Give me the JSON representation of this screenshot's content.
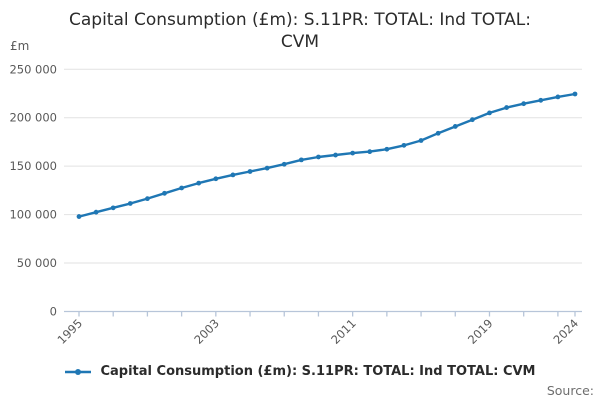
{
  "title": "Capital Consumption (£m): S.11PR: TOTAL: Ind TOTAL: CVM",
  "unit_label": "£m",
  "source_label": "Source:",
  "legend": {
    "label": "Capital Consumption (£m): S.11PR: TOTAL: Ind TOTAL: CVM"
  },
  "colors": {
    "series": "#1f77b4",
    "grid": "#e2e2e2",
    "axis": "#b7c5d9",
    "tick_text": "#595959",
    "title_text": "#2b2b2b",
    "source_text": "#6e6e6e"
  },
  "chart_data": {
    "type": "line",
    "title": "Capital Consumption (£m): S.11PR: TOTAL: Ind TOTAL: CVM",
    "xlabel": "",
    "ylabel": "£m",
    "ylim": [
      0,
      250000
    ],
    "grid": "horizontal",
    "legend_position": "bottom",
    "marker": "point",
    "x": [
      1995,
      1996,
      1997,
      1998,
      1999,
      2000,
      2001,
      2002,
      2003,
      2004,
      2005,
      2006,
      2007,
      2008,
      2009,
      2010,
      2011,
      2012,
      2013,
      2014,
      2015,
      2016,
      2017,
      2018,
      2019,
      2020,
      2021,
      2022,
      2023,
      2024
    ],
    "values": [
      98000,
      102500,
      107000,
      111500,
      116500,
      122000,
      127500,
      132500,
      137000,
      141000,
      144500,
      148000,
      152000,
      156500,
      159500,
      161500,
      163500,
      165000,
      167500,
      171500,
      176500,
      184000,
      191000,
      198000,
      205000,
      210500,
      214500,
      218000,
      221500,
      224500
    ],
    "ytick_values": [
      0,
      50000,
      100000,
      150000,
      200000,
      250000
    ],
    "ytick_labels": [
      "0",
      "50 000",
      "100 000",
      "150 000",
      "200 000",
      "250 000"
    ],
    "xtick_labeled_years": [
      1995,
      2003,
      2011,
      2019,
      2024
    ],
    "xtick_minor_step": 2
  }
}
